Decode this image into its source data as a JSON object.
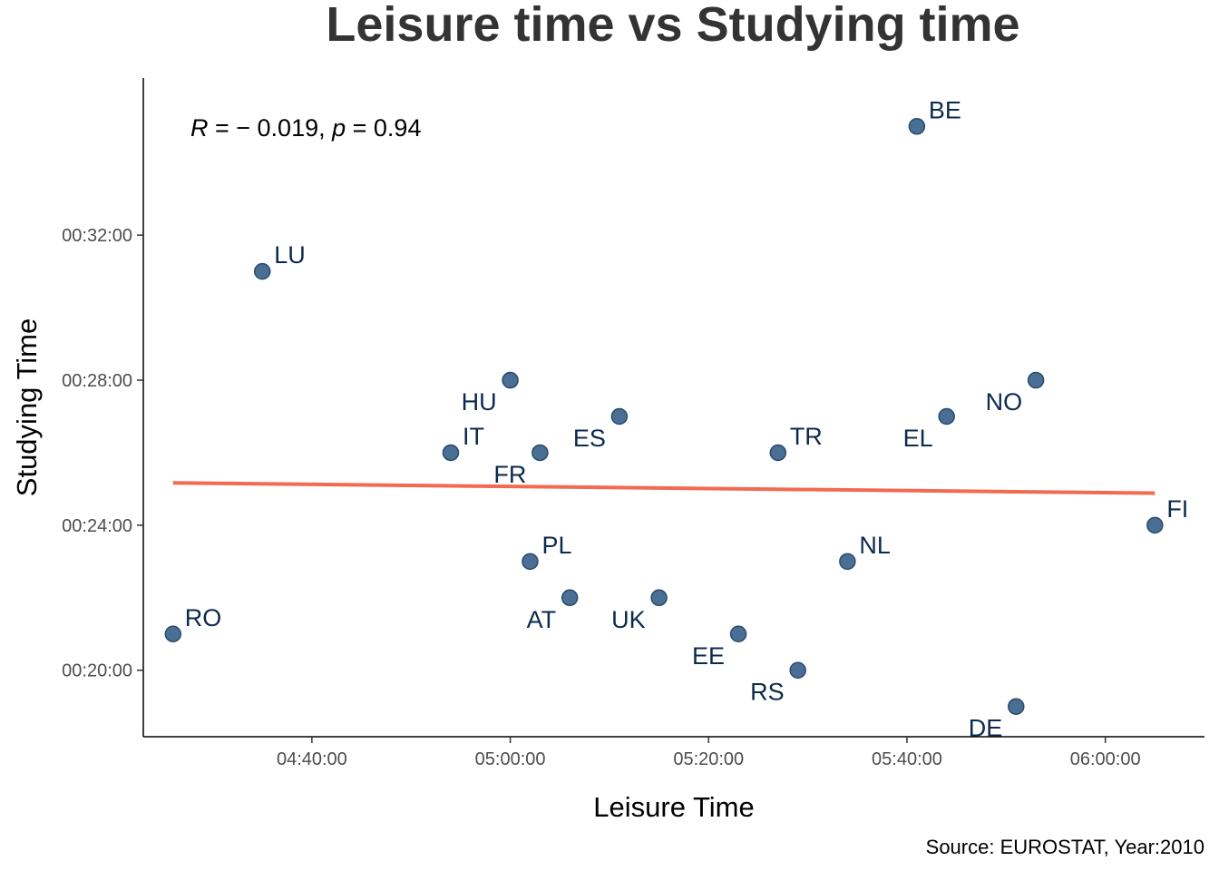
{
  "chart_data": {
    "type": "scatter",
    "title": "Leisure time vs Studying time",
    "xlabel": "Leisure Time",
    "ylabel": "Studying Time",
    "caption": "Source: EUROSTAT, Year:2010",
    "annotation": {
      "r_symbol": "R",
      "r_value": " = − 0.019, ",
      "p_symbol": "p",
      "p_value": " = 0.94"
    },
    "x_format": "hh:mm:ss",
    "y_format": "hh:mm:ss",
    "xlim": [
      "04:23:00",
      "06:10:00"
    ],
    "ylim": [
      "00:18:10",
      "00:36:20"
    ],
    "x_ticks": [
      "04:40:00",
      "05:00:00",
      "05:20:00",
      "05:40:00",
      "06:00:00"
    ],
    "y_ticks": [
      "00:20:00",
      "00:24:00",
      "00:28:00",
      "00:32:00"
    ],
    "grid": false,
    "colors": {
      "points": "#4a6f94",
      "point_stroke": "#2b4a6b",
      "labels": "#0c2a4d",
      "trend": "#f26a4f"
    },
    "points": [
      {
        "label": "RO",
        "x": "04:26:00",
        "y": "00:21:00",
        "label_pos": "upper-right"
      },
      {
        "label": "LU",
        "x": "04:35:00",
        "y": "00:31:00",
        "label_pos": "upper-right"
      },
      {
        "label": "IT",
        "x": "04:54:00",
        "y": "00:26:00",
        "label_pos": "upper-right"
      },
      {
        "label": "HU",
        "x": "05:00:00",
        "y": "00:28:00",
        "label_pos": "lower-left"
      },
      {
        "label": "PL",
        "x": "05:02:00",
        "y": "00:23:00",
        "label_pos": "upper-right"
      },
      {
        "label": "FR",
        "x": "05:03:00",
        "y": "00:26:00",
        "label_pos": "lower-left"
      },
      {
        "label": "AT",
        "x": "05:06:00",
        "y": "00:22:00",
        "label_pos": "lower-left"
      },
      {
        "label": "ES",
        "x": "05:11:00",
        "y": "00:27:00",
        "label_pos": "lower-left"
      },
      {
        "label": "UK",
        "x": "05:15:00",
        "y": "00:22:00",
        "label_pos": "lower-left"
      },
      {
        "label": "EE",
        "x": "05:23:00",
        "y": "00:21:00",
        "label_pos": "lower-left"
      },
      {
        "label": "TR",
        "x": "05:27:00",
        "y": "00:26:00",
        "label_pos": "upper-right"
      },
      {
        "label": "RS",
        "x": "05:29:00",
        "y": "00:20:00",
        "label_pos": "lower-left"
      },
      {
        "label": "NL",
        "x": "05:34:00",
        "y": "00:23:00",
        "label_pos": "upper-right"
      },
      {
        "label": "BE",
        "x": "05:41:00",
        "y": "00:35:00",
        "label_pos": "upper-right"
      },
      {
        "label": "EL",
        "x": "05:44:00",
        "y": "00:27:00",
        "label_pos": "lower-left"
      },
      {
        "label": "DE",
        "x": "05:51:00",
        "y": "00:19:00",
        "label_pos": "lower-left"
      },
      {
        "label": "NO",
        "x": "05:53:00",
        "y": "00:28:00",
        "label_pos": "lower-left"
      },
      {
        "label": "FI",
        "x": "06:05:00",
        "y": "00:24:00",
        "label_pos": "upper-right"
      }
    ],
    "trend_line": {
      "type": "linear",
      "start": {
        "x": "04:26:00",
        "y": "00:25:10"
      },
      "end": {
        "x": "06:05:00",
        "y": "00:24:53"
      }
    }
  }
}
